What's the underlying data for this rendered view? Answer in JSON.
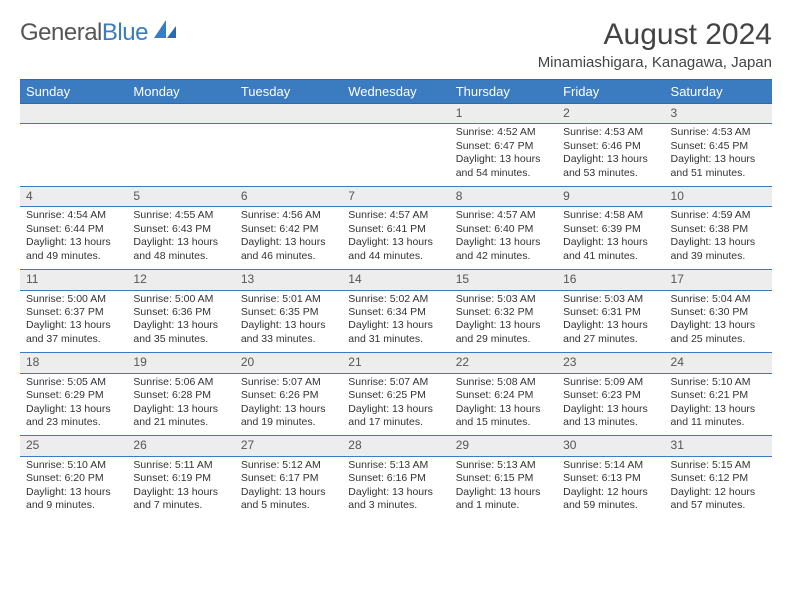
{
  "brand": {
    "part1": "General",
    "part2": "Blue"
  },
  "title": "August 2024",
  "location": "Minamiashigara, Kanagawa, Japan",
  "colors": {
    "header_bg": "#3b7bbf",
    "header_border": "#2f6aa8",
    "daynum_bg": "#ededed",
    "text": "#333333",
    "title_text": "#444444"
  },
  "weekdays": [
    "Sunday",
    "Monday",
    "Tuesday",
    "Wednesday",
    "Thursday",
    "Friday",
    "Saturday"
  ],
  "weeks": [
    [
      null,
      null,
      null,
      null,
      {
        "n": "1",
        "lines": [
          "Sunrise: 4:52 AM",
          "Sunset: 6:47 PM",
          "Daylight: 13 hours",
          "and 54 minutes."
        ]
      },
      {
        "n": "2",
        "lines": [
          "Sunrise: 4:53 AM",
          "Sunset: 6:46 PM",
          "Daylight: 13 hours",
          "and 53 minutes."
        ]
      },
      {
        "n": "3",
        "lines": [
          "Sunrise: 4:53 AM",
          "Sunset: 6:45 PM",
          "Daylight: 13 hours",
          "and 51 minutes."
        ]
      }
    ],
    [
      {
        "n": "4",
        "lines": [
          "Sunrise: 4:54 AM",
          "Sunset: 6:44 PM",
          "Daylight: 13 hours",
          "and 49 minutes."
        ]
      },
      {
        "n": "5",
        "lines": [
          "Sunrise: 4:55 AM",
          "Sunset: 6:43 PM",
          "Daylight: 13 hours",
          "and 48 minutes."
        ]
      },
      {
        "n": "6",
        "lines": [
          "Sunrise: 4:56 AM",
          "Sunset: 6:42 PM",
          "Daylight: 13 hours",
          "and 46 minutes."
        ]
      },
      {
        "n": "7",
        "lines": [
          "Sunrise: 4:57 AM",
          "Sunset: 6:41 PM",
          "Daylight: 13 hours",
          "and 44 minutes."
        ]
      },
      {
        "n": "8",
        "lines": [
          "Sunrise: 4:57 AM",
          "Sunset: 6:40 PM",
          "Daylight: 13 hours",
          "and 42 minutes."
        ]
      },
      {
        "n": "9",
        "lines": [
          "Sunrise: 4:58 AM",
          "Sunset: 6:39 PM",
          "Daylight: 13 hours",
          "and 41 minutes."
        ]
      },
      {
        "n": "10",
        "lines": [
          "Sunrise: 4:59 AM",
          "Sunset: 6:38 PM",
          "Daylight: 13 hours",
          "and 39 minutes."
        ]
      }
    ],
    [
      {
        "n": "11",
        "lines": [
          "Sunrise: 5:00 AM",
          "Sunset: 6:37 PM",
          "Daylight: 13 hours",
          "and 37 minutes."
        ]
      },
      {
        "n": "12",
        "lines": [
          "Sunrise: 5:00 AM",
          "Sunset: 6:36 PM",
          "Daylight: 13 hours",
          "and 35 minutes."
        ]
      },
      {
        "n": "13",
        "lines": [
          "Sunrise: 5:01 AM",
          "Sunset: 6:35 PM",
          "Daylight: 13 hours",
          "and 33 minutes."
        ]
      },
      {
        "n": "14",
        "lines": [
          "Sunrise: 5:02 AM",
          "Sunset: 6:34 PM",
          "Daylight: 13 hours",
          "and 31 minutes."
        ]
      },
      {
        "n": "15",
        "lines": [
          "Sunrise: 5:03 AM",
          "Sunset: 6:32 PM",
          "Daylight: 13 hours",
          "and 29 minutes."
        ]
      },
      {
        "n": "16",
        "lines": [
          "Sunrise: 5:03 AM",
          "Sunset: 6:31 PM",
          "Daylight: 13 hours",
          "and 27 minutes."
        ]
      },
      {
        "n": "17",
        "lines": [
          "Sunrise: 5:04 AM",
          "Sunset: 6:30 PM",
          "Daylight: 13 hours",
          "and 25 minutes."
        ]
      }
    ],
    [
      {
        "n": "18",
        "lines": [
          "Sunrise: 5:05 AM",
          "Sunset: 6:29 PM",
          "Daylight: 13 hours",
          "and 23 minutes."
        ]
      },
      {
        "n": "19",
        "lines": [
          "Sunrise: 5:06 AM",
          "Sunset: 6:28 PM",
          "Daylight: 13 hours",
          "and 21 minutes."
        ]
      },
      {
        "n": "20",
        "lines": [
          "Sunrise: 5:07 AM",
          "Sunset: 6:26 PM",
          "Daylight: 13 hours",
          "and 19 minutes."
        ]
      },
      {
        "n": "21",
        "lines": [
          "Sunrise: 5:07 AM",
          "Sunset: 6:25 PM",
          "Daylight: 13 hours",
          "and 17 minutes."
        ]
      },
      {
        "n": "22",
        "lines": [
          "Sunrise: 5:08 AM",
          "Sunset: 6:24 PM",
          "Daylight: 13 hours",
          "and 15 minutes."
        ]
      },
      {
        "n": "23",
        "lines": [
          "Sunrise: 5:09 AM",
          "Sunset: 6:23 PM",
          "Daylight: 13 hours",
          "and 13 minutes."
        ]
      },
      {
        "n": "24",
        "lines": [
          "Sunrise: 5:10 AM",
          "Sunset: 6:21 PM",
          "Daylight: 13 hours",
          "and 11 minutes."
        ]
      }
    ],
    [
      {
        "n": "25",
        "lines": [
          "Sunrise: 5:10 AM",
          "Sunset: 6:20 PM",
          "Daylight: 13 hours",
          "and 9 minutes."
        ]
      },
      {
        "n": "26",
        "lines": [
          "Sunrise: 5:11 AM",
          "Sunset: 6:19 PM",
          "Daylight: 13 hours",
          "and 7 minutes."
        ]
      },
      {
        "n": "27",
        "lines": [
          "Sunrise: 5:12 AM",
          "Sunset: 6:17 PM",
          "Daylight: 13 hours",
          "and 5 minutes."
        ]
      },
      {
        "n": "28",
        "lines": [
          "Sunrise: 5:13 AM",
          "Sunset: 6:16 PM",
          "Daylight: 13 hours",
          "and 3 minutes."
        ]
      },
      {
        "n": "29",
        "lines": [
          "Sunrise: 5:13 AM",
          "Sunset: 6:15 PM",
          "Daylight: 13 hours",
          "and 1 minute."
        ]
      },
      {
        "n": "30",
        "lines": [
          "Sunrise: 5:14 AM",
          "Sunset: 6:13 PM",
          "Daylight: 12 hours",
          "and 59 minutes."
        ]
      },
      {
        "n": "31",
        "lines": [
          "Sunrise: 5:15 AM",
          "Sunset: 6:12 PM",
          "Daylight: 12 hours",
          "and 57 minutes."
        ]
      }
    ]
  ]
}
